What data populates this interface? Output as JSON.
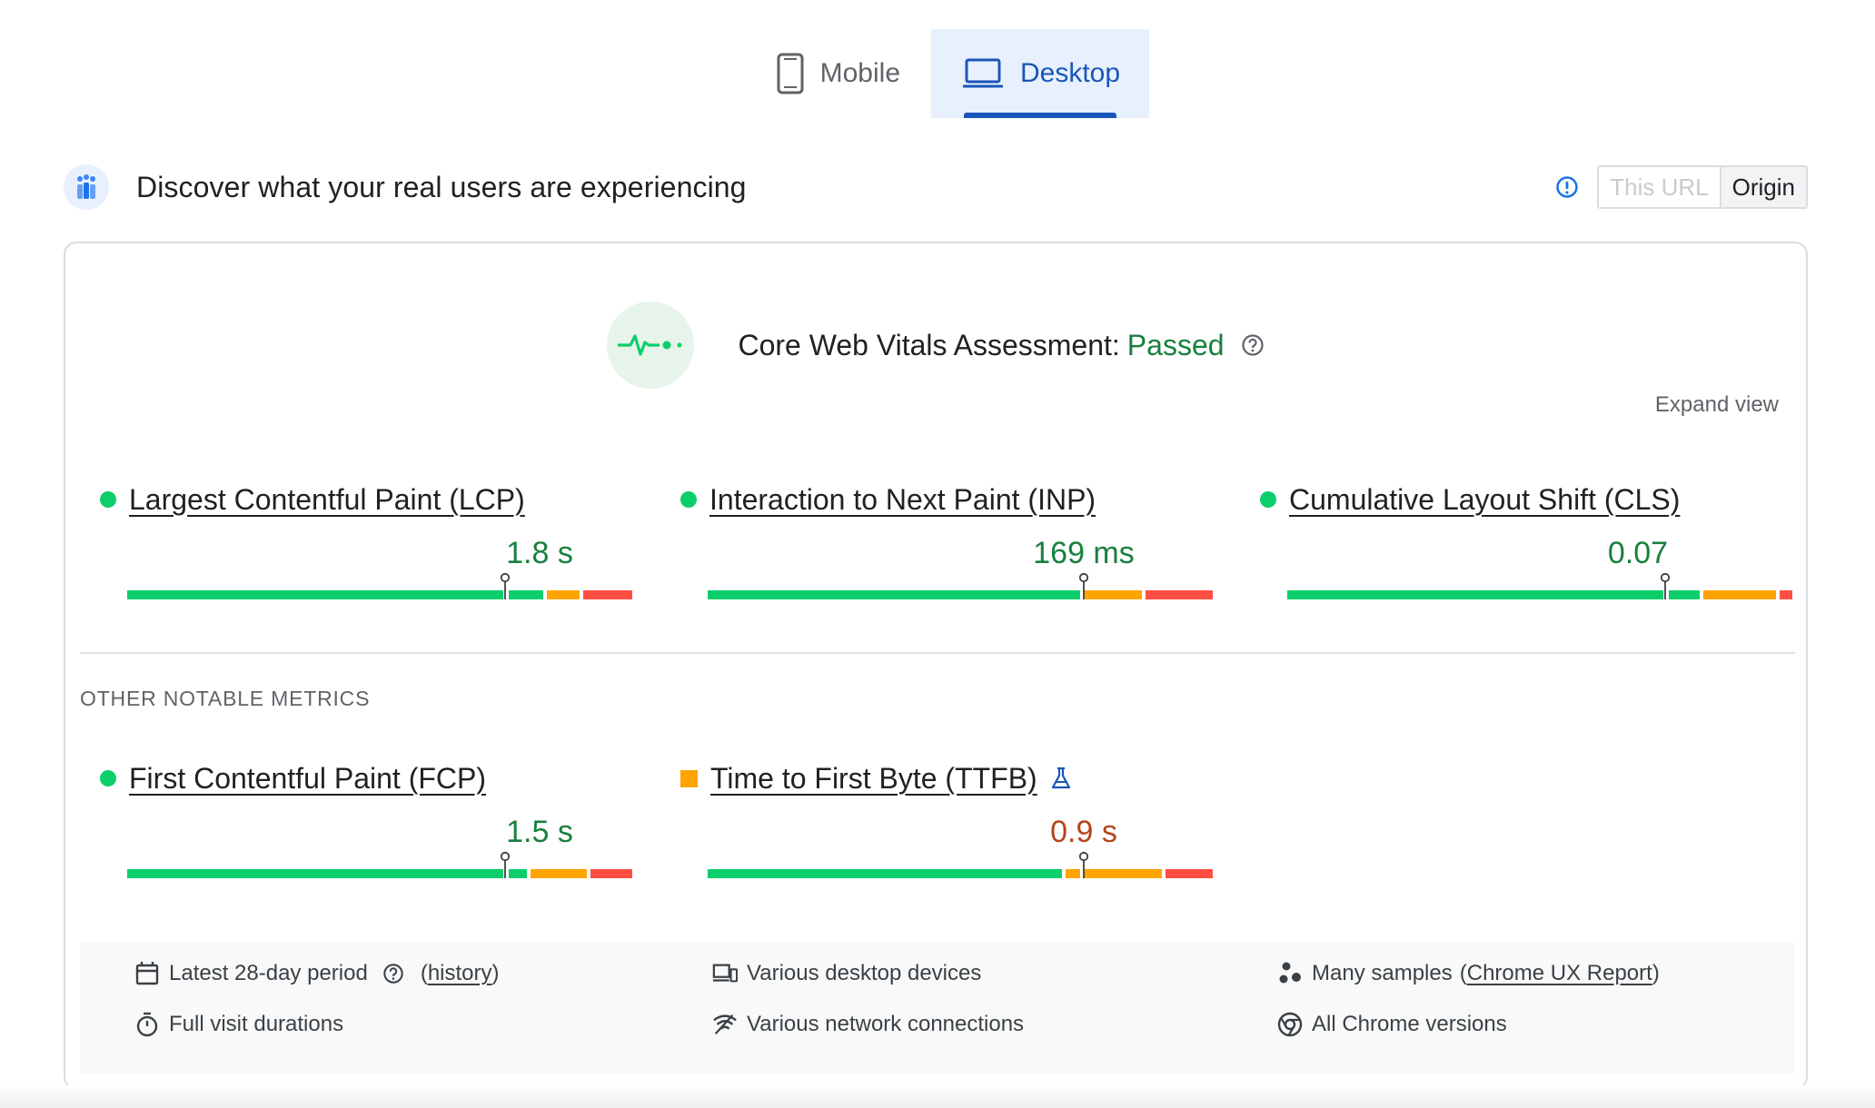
{
  "tabs": [
    {
      "label": "Mobile",
      "icon": "phone-icon",
      "active": false
    },
    {
      "label": "Desktop",
      "icon": "laptop-icon",
      "active": true
    }
  ],
  "field_header": {
    "title": "Discover what your real users are experiencing",
    "toggle": {
      "this_url": "This URL",
      "origin": "Origin",
      "selected": "Origin"
    }
  },
  "assessment": {
    "label": "Core Web Vitals Assessment:",
    "status": "Passed",
    "status_color": "#18803d",
    "expand_label": "Expand view"
  },
  "colors": {
    "good": "#0cce6b",
    "needs_improvement": "#ffa400",
    "poor": "#ff4e42"
  },
  "core_metrics": [
    {
      "name": "Largest Contentful Paint (LCP)",
      "value": "1.8 s",
      "rating": "good"
    },
    {
      "name": "Interaction to Next Paint (INP)",
      "value": "169 ms",
      "rating": "good"
    },
    {
      "name": "Cumulative Layout Shift (CLS)",
      "value": "0.07",
      "rating": "good"
    }
  ],
  "other_section_label": "OTHER NOTABLE METRICS",
  "other_metrics": [
    {
      "name": "First Contentful Paint (FCP)",
      "value": "1.5 s",
      "rating": "good"
    },
    {
      "name": "Time to First Byte (TTFB)",
      "value": "0.9 s",
      "rating": "needs-improvement",
      "experimental": true
    }
  ],
  "footer": {
    "period": "Latest 28-day period",
    "history_link": "history",
    "devices": "Various desktop devices",
    "samples_prefix": "Many samples",
    "samples_link": "Chrome UX Report",
    "durations": "Full visit durations",
    "network": "Various network connections",
    "chrome": "All Chrome versions"
  }
}
